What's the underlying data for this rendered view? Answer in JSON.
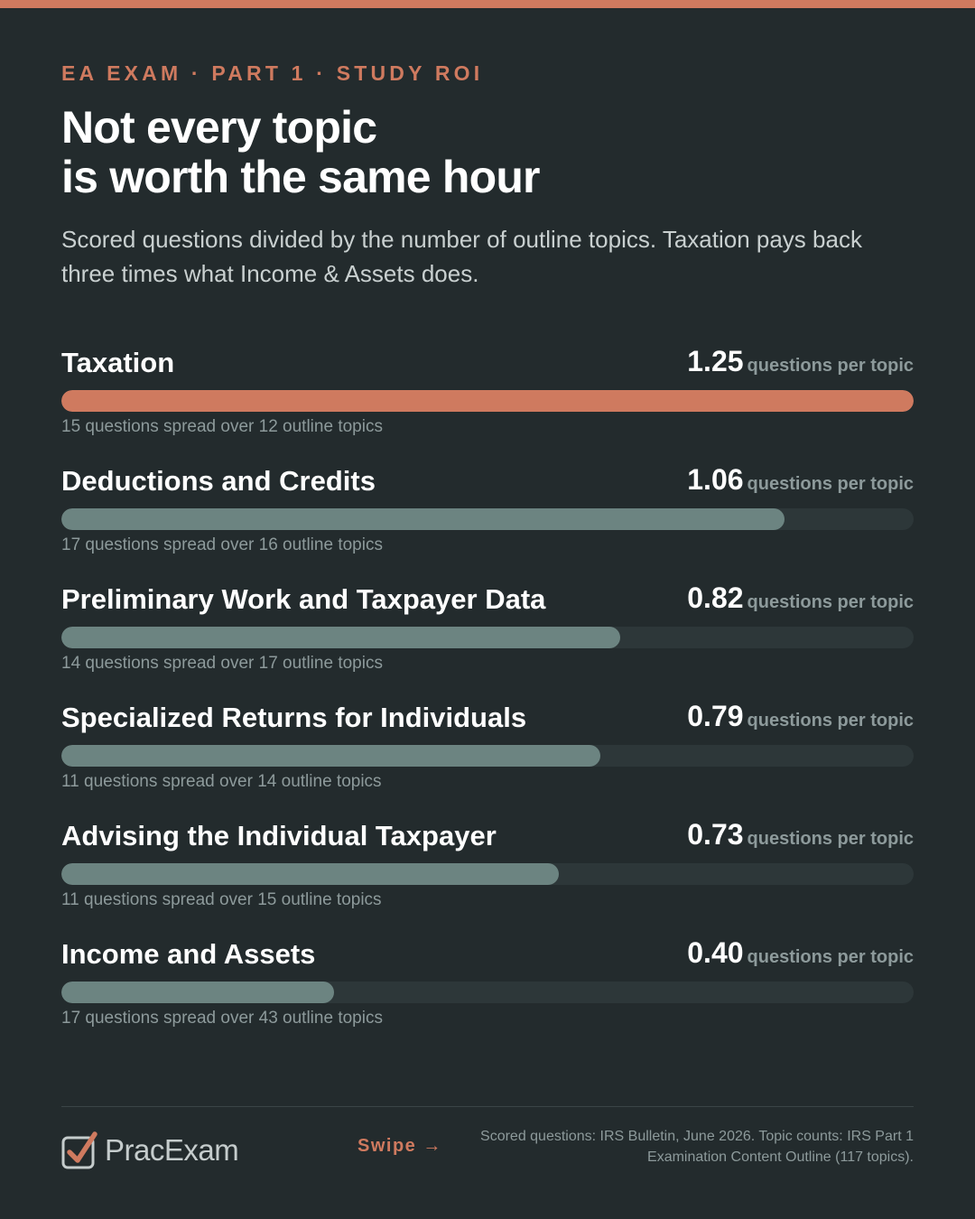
{
  "header": {
    "eyebrow": "EA EXAM · PART 1 · STUDY ROI",
    "title_lines": [
      "Not every topic",
      "is worth the same hour"
    ],
    "subtitle": "Scored questions divided by the number of outline topics. Taxation pays back three times what Income & Assets does."
  },
  "chart_data": {
    "type": "bar",
    "orientation": "horizontal",
    "categories": [
      "Taxation",
      "Deductions and Credits",
      "Preliminary Work and Taxpayer Data",
      "Specialized Returns for Individuals",
      "Advising the Individual Taxpayer",
      "Income and Assets"
    ],
    "values": [
      1.25,
      1.06,
      0.82,
      0.79,
      0.73,
      0.4
    ],
    "value_labels": [
      "1.25",
      "1.06",
      "0.82",
      "0.79",
      "0.73",
      "0.40"
    ],
    "value_unit": "questions per topic",
    "notes": [
      "15 questions spread over 12 outline topics",
      "17 questions spread over 16 outline topics",
      "14 questions spread over 17 outline topics",
      "11 questions spread over 14 outline topics",
      "11 questions spread over 15 outline topics",
      "17 questions spread over 43 outline topics"
    ],
    "xlim": [
      0,
      1.25
    ],
    "highlight_index": 0,
    "colors": {
      "highlight": "#cf7a5f",
      "bar": "#6c8481",
      "track": "#2d3739"
    }
  },
  "footer": {
    "logo_text": "PracExam",
    "swipe_label": "Swipe →",
    "source_lines": [
      "Scored questions: IRS Bulletin, June 2026. Topic counts: IRS Part 1",
      "Examination Content Outline (117 topics)."
    ]
  },
  "colors": {
    "background": "#232b2d",
    "accent": "#cf7a5f",
    "muted_text": "#8d9a9b"
  }
}
